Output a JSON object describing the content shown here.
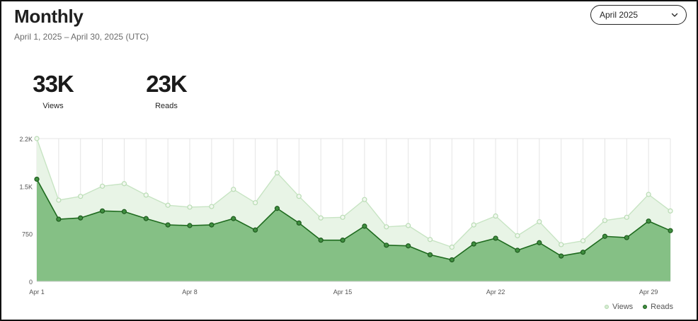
{
  "header": {
    "title": "Monthly",
    "date_range": "April 1, 2025 – April 30, 2025 (UTC)",
    "month_select": {
      "value": "April 2025",
      "icon": "chevron-down-icon"
    }
  },
  "stats": [
    {
      "value": "33K",
      "label": "Views"
    },
    {
      "value": "23K",
      "label": "Reads"
    }
  ],
  "chart_data": {
    "type": "area",
    "x": [
      "Apr 1",
      "Apr 2",
      "Apr 3",
      "Apr 4",
      "Apr 5",
      "Apr 6",
      "Apr 7",
      "Apr 8",
      "Apr 9",
      "Apr 10",
      "Apr 11",
      "Apr 12",
      "Apr 13",
      "Apr 14",
      "Apr 15",
      "Apr 16",
      "Apr 17",
      "Apr 18",
      "Apr 19",
      "Apr 20",
      "Apr 21",
      "Apr 22",
      "Apr 23",
      "Apr 24",
      "Apr 25",
      "Apr 26",
      "Apr 27",
      "Apr 28",
      "Apr 29",
      "Apr 30"
    ],
    "x_tick_labels": [
      "Apr 1",
      "Apr 8",
      "Apr 15",
      "Apr 22",
      "Apr 29"
    ],
    "y_tick_labels": [
      "0",
      "750",
      "1.5K",
      "2.2K"
    ],
    "y_ticks": [
      0,
      750,
      1500,
      2250
    ],
    "ylim": [
      0,
      2250
    ],
    "grid": "vertical",
    "legend_position": "bottom-right",
    "series": [
      {
        "name": "Views",
        "color": "#c7e4c3",
        "fill": "#e8f4e6",
        "values": [
          2250,
          1280,
          1340,
          1500,
          1540,
          1360,
          1200,
          1170,
          1180,
          1450,
          1240,
          1710,
          1340,
          1000,
          1010,
          1290,
          860,
          880,
          660,
          540,
          890,
          1030,
          720,
          940,
          580,
          640,
          960,
          1010,
          1370,
          1110
        ]
      },
      {
        "name": "Reads",
        "color": "#1e6a1e",
        "fill": "#85c085",
        "values": [
          1610,
          980,
          1000,
          1110,
          1100,
          990,
          890,
          880,
          890,
          990,
          810,
          1150,
          920,
          650,
          650,
          870,
          570,
          560,
          420,
          340,
          590,
          680,
          490,
          610,
          400,
          460,
          710,
          690,
          950,
          800
        ]
      }
    ]
  }
}
